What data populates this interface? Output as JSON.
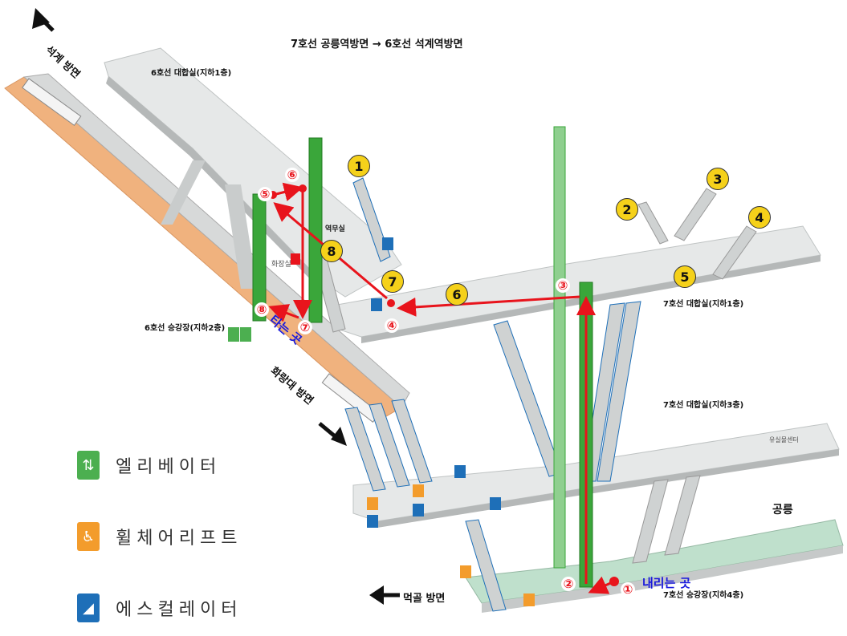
{
  "title": "7호선 공릉역방면 → 6호선 석계역방면",
  "directions": {
    "seokgye": "석계 방면",
    "hwarangdae": "화랑대 방면",
    "meokgol": "먹골 방면"
  },
  "labels": {
    "l6_concourse": "6호선 대합실(지하1층)",
    "l6_platform": "6호선 승강장(지하2층)",
    "l7_concourse_b1": "7호선 대합실(지하1층)",
    "l7_concourse_b3": "7호선 대합실(지하3층)",
    "l7_platform": "7호선 승강장(지하4층)",
    "station_office": "역무실",
    "restroom": "화장실",
    "info_center": "유실물센터",
    "gongneung": "공릉"
  },
  "callouts": {
    "board": "타는 곳",
    "alight": "내리는 곳"
  },
  "exits": [
    "1",
    "2",
    "3",
    "4",
    "5",
    "6",
    "7",
    "8"
  ],
  "route_steps": [
    "①",
    "②",
    "③",
    "④",
    "⑤",
    "⑥",
    "⑦",
    "⑧"
  ],
  "legend": [
    {
      "icon": "elevator-icon",
      "label": "엘리베이터",
      "color": "#4caf50"
    },
    {
      "icon": "wheelchair-lift-icon",
      "label": "휠체어리프트",
      "color": "#f39c2c"
    },
    {
      "icon": "escalator-icon",
      "label": "에스컬레이터",
      "color": "#1e6fb8"
    }
  ],
  "colors": {
    "route": "#e8141c",
    "exit_badge": "#f5d11a",
    "platform_6": "#f0b27e",
    "elevator": "#3aa63a",
    "escalator": "#1e6fb8",
    "floor": "#e6e8e8"
  }
}
